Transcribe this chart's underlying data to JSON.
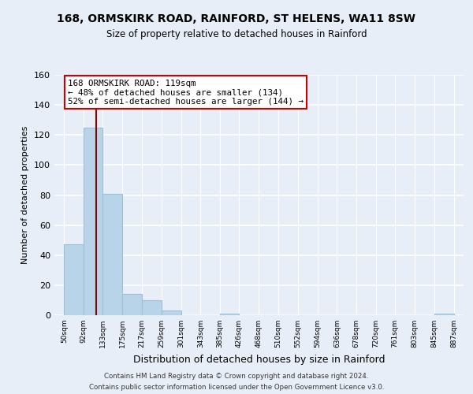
{
  "title1": "168, ORMSKIRK ROAD, RAINFORD, ST HELENS, WA11 8SW",
  "title2": "Size of property relative to detached houses in Rainford",
  "xlabel": "Distribution of detached houses by size in Rainford",
  "ylabel": "Number of detached properties",
  "bar_edges": [
    50,
    92,
    133,
    175,
    217,
    259,
    301,
    343,
    385,
    426,
    468,
    510,
    552,
    594,
    636,
    678,
    720,
    761,
    803,
    845,
    887
  ],
  "bar_heights": [
    47,
    125,
    81,
    14,
    10,
    3,
    0,
    0,
    1,
    0,
    0,
    0,
    0,
    0,
    0,
    0,
    0,
    0,
    0,
    1,
    0
  ],
  "bar_color": "#b8d4e8",
  "bar_edge_color": "#a0c0d8",
  "highlight_line_x": 119,
  "annotation_title": "168 ORMSKIRK ROAD: 119sqm",
  "annotation_line1": "← 48% of detached houses are smaller (134)",
  "annotation_line2": "52% of semi-detached houses are larger (144) →",
  "annotation_box_color": "#ffffff",
  "annotation_box_edge": "#cc0000",
  "vertical_line_color": "#8b0000",
  "ylim": [
    0,
    160
  ],
  "yticks": [
    0,
    20,
    40,
    60,
    80,
    100,
    120,
    140,
    160
  ],
  "tick_labels": [
    "50sqm",
    "92sqm",
    "133sqm",
    "175sqm",
    "217sqm",
    "259sqm",
    "301sqm",
    "343sqm",
    "385sqm",
    "426sqm",
    "468sqm",
    "510sqm",
    "552sqm",
    "594sqm",
    "636sqm",
    "678sqm",
    "720sqm",
    "761sqm",
    "803sqm",
    "845sqm",
    "887sqm"
  ],
  "footer1": "Contains HM Land Registry data © Crown copyright and database right 2024.",
  "footer2": "Contains public sector information licensed under the Open Government Licence v3.0.",
  "background_color": "#e8eef8",
  "grid_color": "#ffffff",
  "xlim_left": 29,
  "xlim_right": 908
}
